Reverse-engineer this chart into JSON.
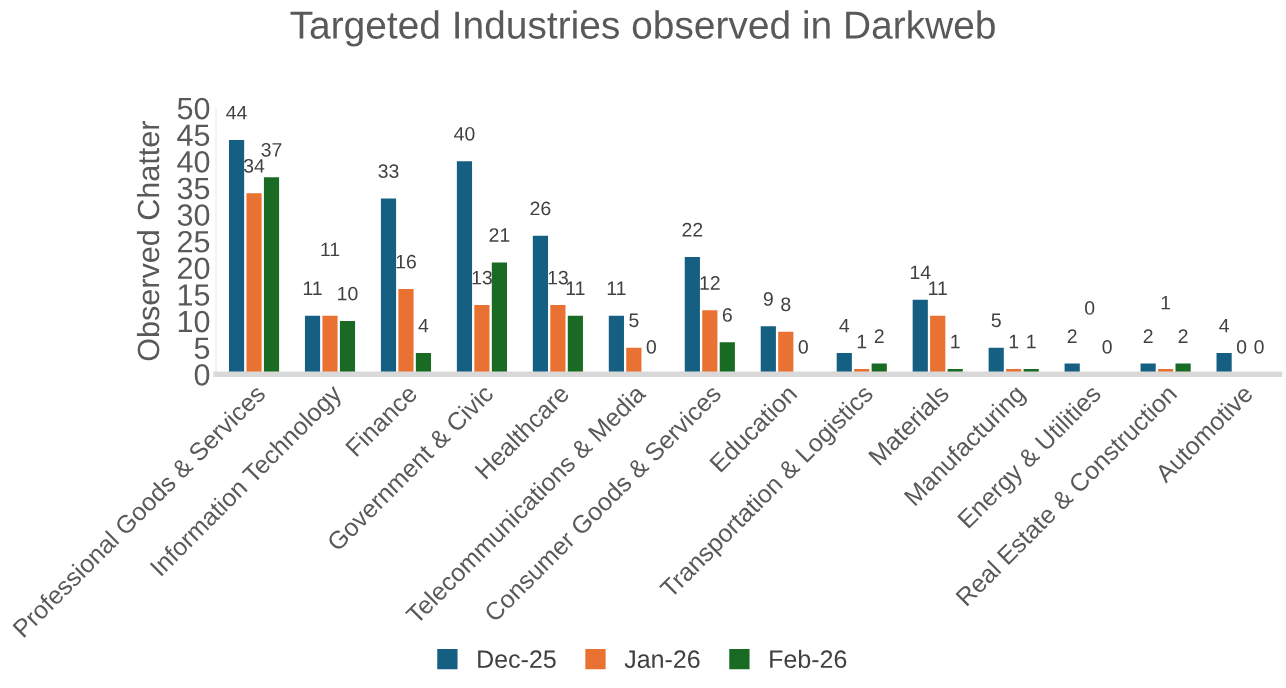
{
  "chart_data": {
    "type": "bar",
    "title": "Targeted Industries observed in Darkweb",
    "ylabel": "Observed Chatter",
    "categories": [
      "Professional Goods & Services",
      "Information Technology",
      "Finance",
      "Government & Civic",
      "Healthcare",
      "Telecommunications & Media",
      "Consumer Goods & Services",
      "Education",
      "Transportation & Logistics",
      "Materials",
      "Manufacturing",
      "Energy & Utilities",
      "Real Estate & Construction",
      "Automotive"
    ],
    "series": [
      {
        "name": "Dec-25",
        "color": "#156082",
        "values": [
          44,
          11,
          33,
          40,
          26,
          11,
          22,
          9,
          4,
          14,
          5,
          2,
          2,
          4
        ]
      },
      {
        "name": "Jan-26",
        "color": "#e97132",
        "values": [
          34,
          11,
          16,
          13,
          13,
          5,
          12,
          8,
          1,
          11,
          1,
          0,
          1,
          0
        ]
      },
      {
        "name": "Feb-26",
        "color": "#196b24",
        "values": [
          37,
          10,
          4,
          21,
          11,
          0,
          6,
          0,
          2,
          1,
          1,
          0,
          2,
          0
        ]
      }
    ],
    "ylim": [
      0,
      50
    ],
    "yticks": [
      0,
      5,
      10,
      15,
      20,
      25,
      30,
      35,
      40,
      45,
      50
    ],
    "data_labels": true,
    "grid": false,
    "legend": "bottom"
  }
}
